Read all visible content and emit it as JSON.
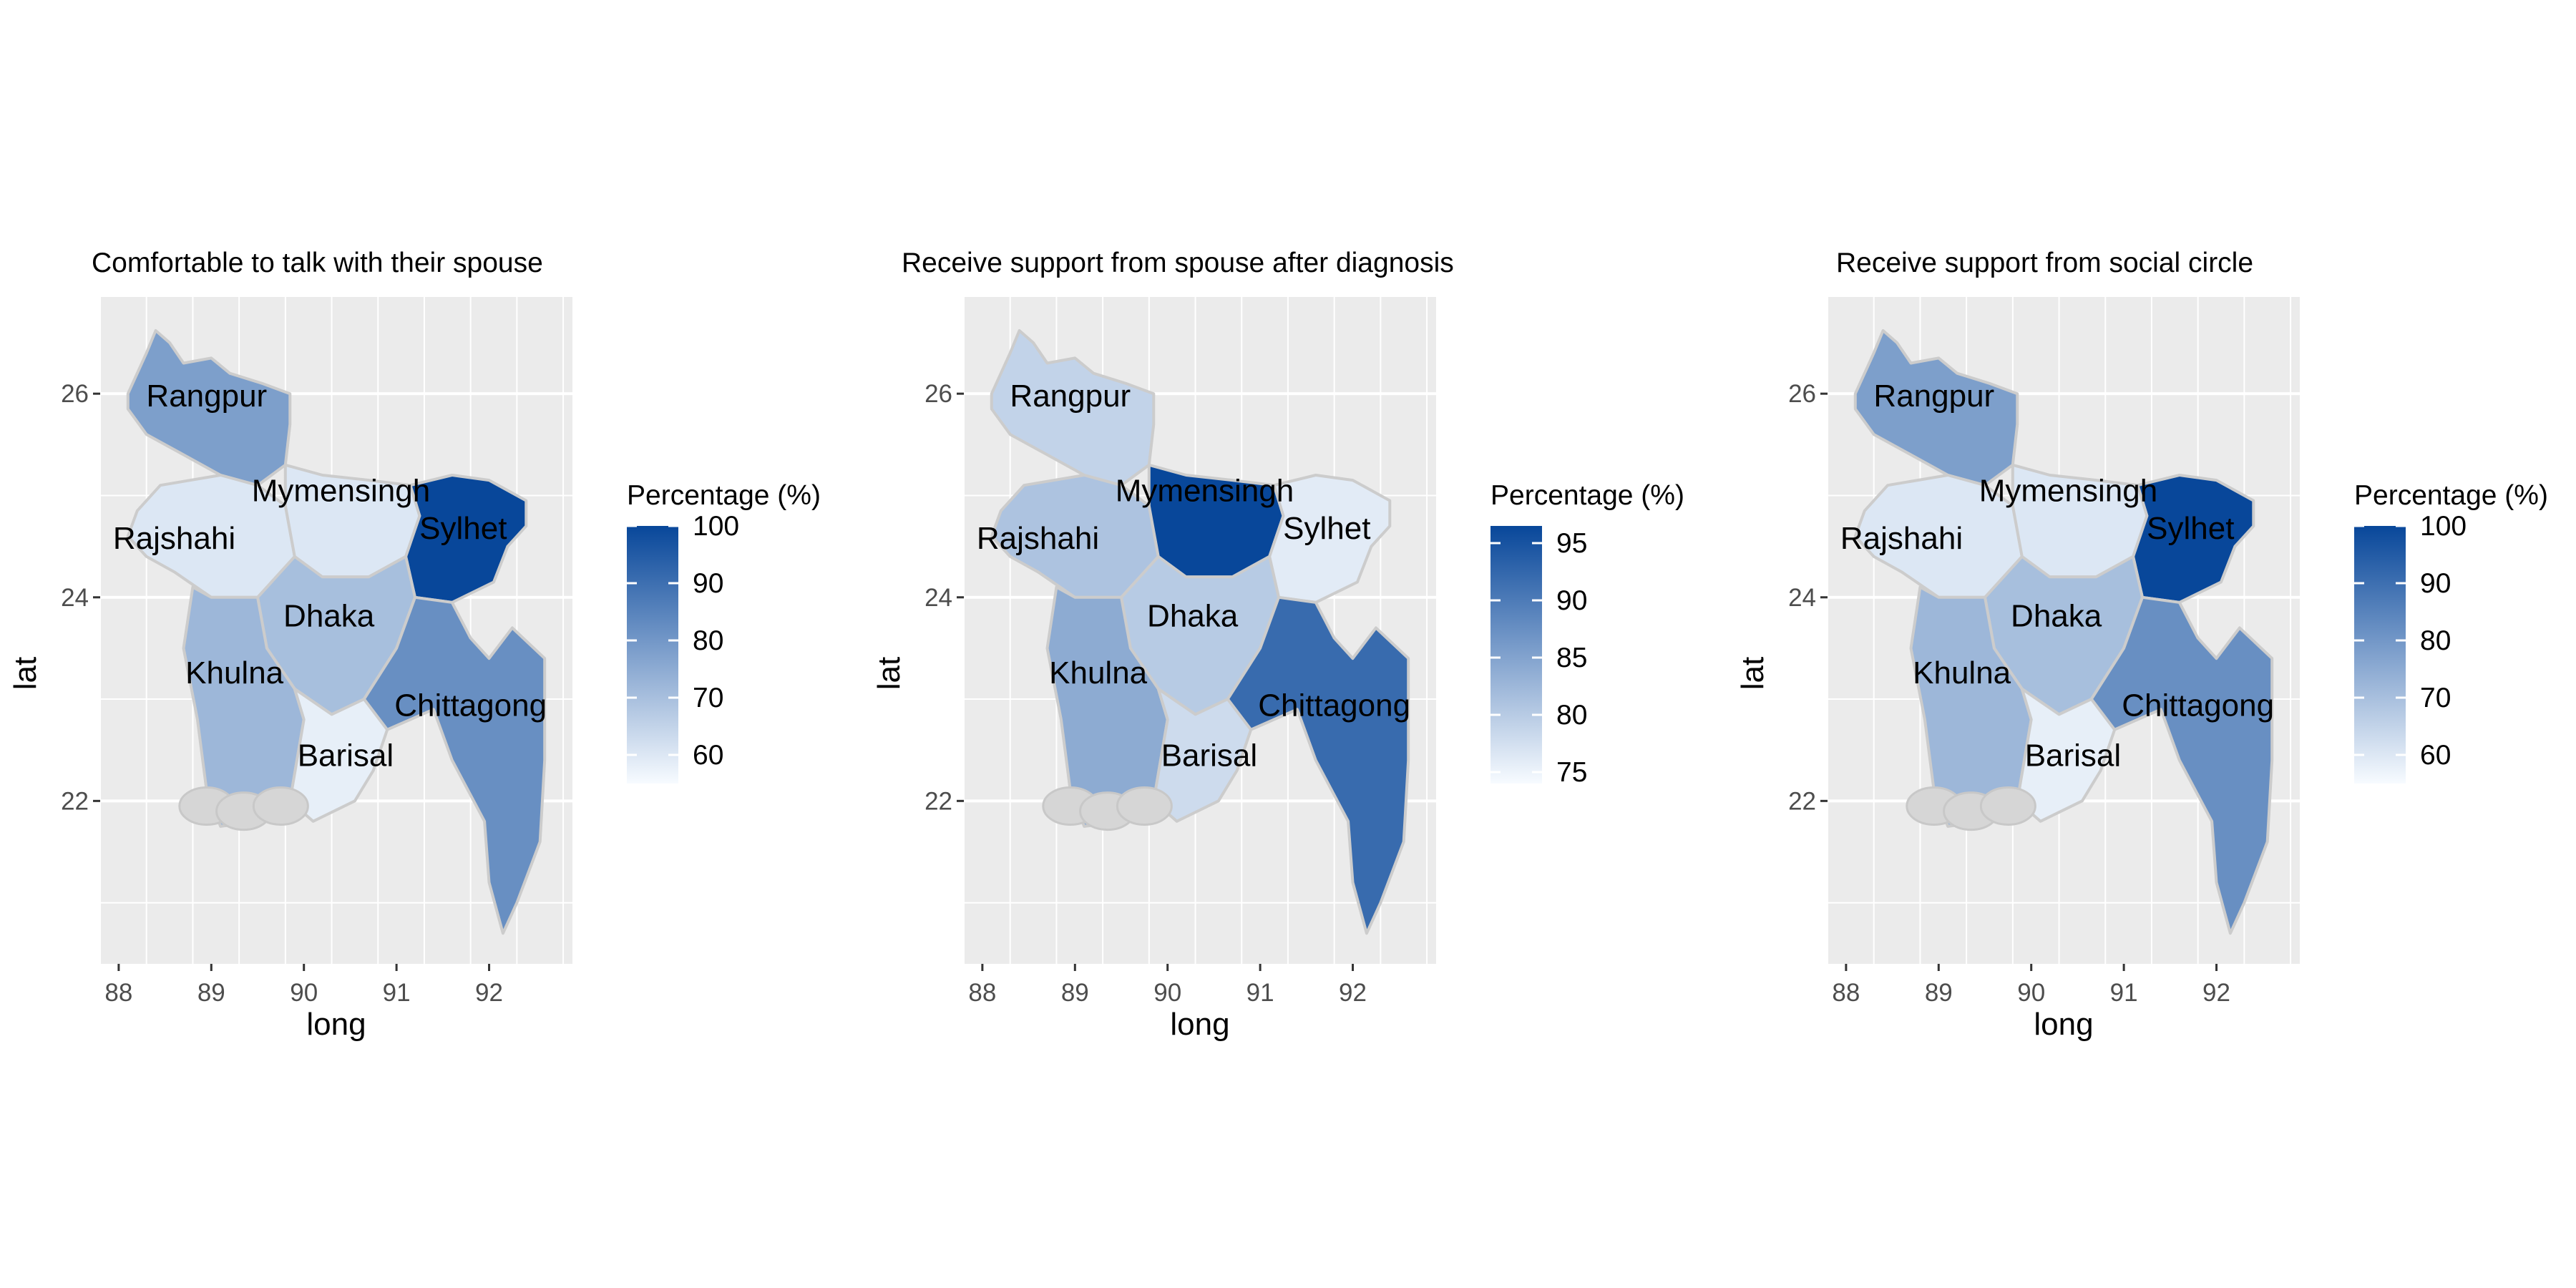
{
  "chart_data": [
    {
      "type": "map",
      "title": "Comfortable to talk with their spouse",
      "xlabel": "long",
      "ylabel": "lat",
      "xlim": [
        87.8,
        92.9
      ],
      "ylim": [
        20.4,
        26.95
      ],
      "x_ticks": [
        88,
        89,
        90,
        91,
        92
      ],
      "y_ticks": [
        22,
        24,
        26
      ],
      "legend": {
        "title": "Percentage (%)",
        "placement": "right",
        "min": 55,
        "max": 100,
        "ticks": [
          60,
          70,
          80,
          90,
          100
        ]
      },
      "regions": [
        {
          "name": "Rangpur",
          "value": 78
        },
        {
          "name": "Rajshahi",
          "value": 60
        },
        {
          "name": "Mymensingh",
          "value": 60
        },
        {
          "name": "Sylhet",
          "value": 100
        },
        {
          "name": "Dhaka",
          "value": 70
        },
        {
          "name": "Khulna",
          "value": 72
        },
        {
          "name": "Barisal",
          "value": 58
        },
        {
          "name": "Chittagong",
          "value": 82
        }
      ]
    },
    {
      "type": "map",
      "title": "Receive support from spouse after diagnosis",
      "xlabel": "long",
      "ylabel": "lat",
      "xlim": [
        87.8,
        92.9
      ],
      "ylim": [
        20.4,
        26.95
      ],
      "x_ticks": [
        88,
        89,
        90,
        91,
        92
      ],
      "y_ticks": [
        22,
        24,
        26
      ],
      "legend": {
        "title": "Percentage (%)",
        "placement": "right",
        "min": 74,
        "max": 96.5,
        "ticks": [
          75,
          80,
          85,
          90,
          95
        ]
      },
      "regions": [
        {
          "name": "Rangpur",
          "value": 79
        },
        {
          "name": "Rajshahi",
          "value": 81
        },
        {
          "name": "Mymensingh",
          "value": 96.5
        },
        {
          "name": "Sylhet",
          "value": 76
        },
        {
          "name": "Dhaka",
          "value": 80
        },
        {
          "name": "Khulna",
          "value": 84
        },
        {
          "name": "Barisal",
          "value": 78
        },
        {
          "name": "Chittagong",
          "value": 92
        }
      ]
    },
    {
      "type": "map",
      "title": "Receive support from social circle",
      "xlabel": "long",
      "ylabel": "lat",
      "xlim": [
        87.8,
        92.9
      ],
      "ylim": [
        20.4,
        26.95
      ],
      "x_ticks": [
        88,
        89,
        90,
        91,
        92
      ],
      "y_ticks": [
        22,
        24,
        26
      ],
      "legend": {
        "title": "Percentage (%)",
        "placement": "right",
        "min": 55,
        "max": 100,
        "ticks": [
          60,
          70,
          80,
          90,
          100
        ]
      },
      "regions": [
        {
          "name": "Rangpur",
          "value": 78
        },
        {
          "name": "Rajshahi",
          "value": 60
        },
        {
          "name": "Mymensingh",
          "value": 60
        },
        {
          "name": "Sylhet",
          "value": 100
        },
        {
          "name": "Dhaka",
          "value": 70
        },
        {
          "name": "Khulna",
          "value": 72
        },
        {
          "name": "Barisal",
          "value": 58
        },
        {
          "name": "Chittagong",
          "value": 82
        }
      ]
    }
  ],
  "colors": {
    "low": "#f7fbff",
    "high": "#08479a",
    "panel_background": "#ebebeb",
    "gridline": "#ffffff",
    "region_border": "#cccccc"
  }
}
